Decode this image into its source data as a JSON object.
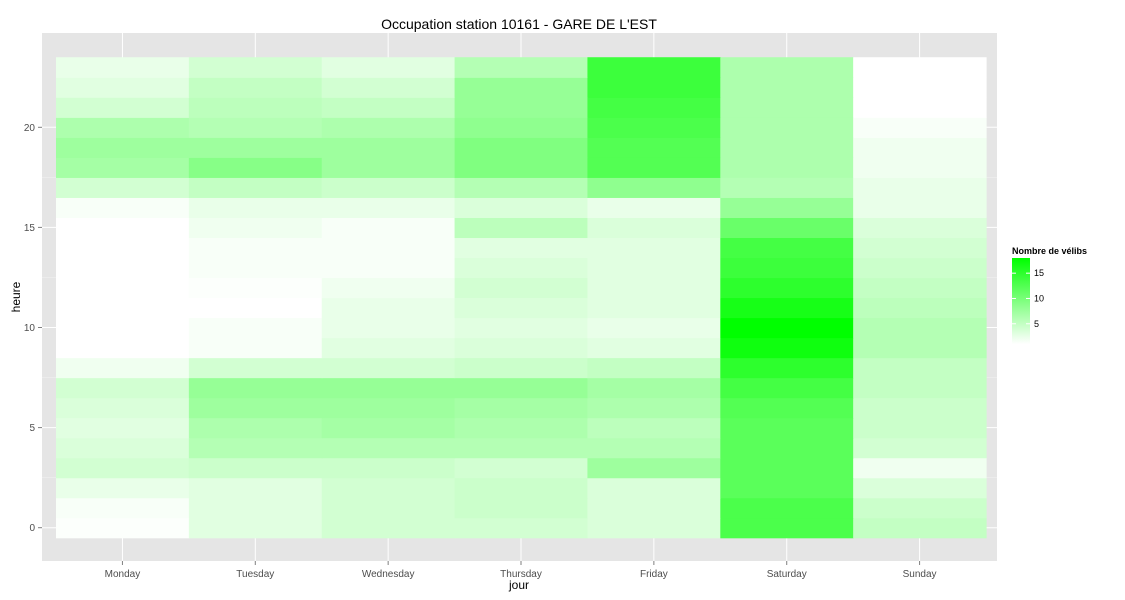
{
  "chart_data": {
    "type": "heatmap",
    "title": "Occupation station 10161 - GARE DE L'EST",
    "xlabel": "jour",
    "ylabel": "heure",
    "x_categories": [
      "Monday",
      "Tuesday",
      "Wednesday",
      "Thursday",
      "Friday",
      "Saturday",
      "Sunday"
    ],
    "y_hours": [
      0,
      1,
      2,
      3,
      4,
      5,
      6,
      7,
      8,
      9,
      10,
      11,
      12,
      13,
      14,
      15,
      16,
      17,
      18,
      19,
      20,
      21,
      22,
      23
    ],
    "y_ticks": [
      0,
      5,
      10,
      15,
      20
    ],
    "ylim": [
      -0.5,
      23.5
    ],
    "grid": true,
    "legend": {
      "title": "Nombre de vélibs",
      "ticks": [
        5,
        10,
        15
      ],
      "value_range": [
        1,
        18
      ],
      "color_low": "#ffffff",
      "color_high": "#00ff00",
      "placement": "right"
    },
    "values": [
      [
        1.2,
        3.0,
        4.0,
        4.0,
        3.5,
        13.0,
        5.0
      ],
      [
        1.5,
        3.0,
        4.0,
        4.5,
        3.5,
        13.0,
        4.5
      ],
      [
        2.5,
        3.0,
        4.0,
        4.5,
        3.5,
        12.0,
        3.5
      ],
      [
        4.0,
        4.5,
        4.5,
        4.0,
        7.5,
        12.0,
        2.0
      ],
      [
        3.5,
        6.0,
        6.0,
        6.0,
        6.0,
        12.0,
        4.0
      ],
      [
        3.0,
        6.5,
        7.0,
        6.5,
        5.5,
        12.0,
        4.5
      ],
      [
        3.5,
        7.5,
        7.5,
        7.0,
        6.5,
        12.5,
        4.5
      ],
      [
        4.0,
        8.0,
        8.0,
        8.0,
        7.0,
        13.5,
        5.0
      ],
      [
        2.0,
        4.0,
        4.0,
        4.5,
        5.0,
        15.0,
        5.0
      ],
      [
        0.5,
        1.5,
        3.0,
        3.5,
        3.0,
        17.0,
        6.0
      ],
      [
        0.2,
        1.5,
        2.5,
        3.0,
        2.5,
        18.0,
        6.0
      ],
      [
        1.0,
        1.0,
        2.5,
        3.5,
        3.0,
        16.5,
        5.5
      ],
      [
        1.0,
        1.2,
        2.0,
        4.0,
        3.0,
        15.0,
        5.0
      ],
      [
        1.0,
        1.5,
        1.5,
        3.5,
        3.0,
        14.0,
        4.5
      ],
      [
        0.8,
        1.5,
        1.5,
        3.0,
        3.0,
        13.5,
        4.0
      ],
      [
        0.8,
        2.0,
        1.5,
        5.5,
        3.5,
        11.0,
        3.5
      ],
      [
        1.5,
        2.5,
        2.5,
        3.5,
        2.5,
        8.0,
        2.5
      ],
      [
        4.0,
        5.0,
        4.5,
        6.0,
        8.5,
        6.0,
        2.5
      ],
      [
        7.0,
        9.0,
        7.5,
        9.5,
        12.5,
        6.5,
        2.0
      ],
      [
        7.5,
        7.5,
        7.5,
        9.5,
        12.5,
        6.5,
        2.0
      ],
      [
        6.5,
        6.0,
        6.5,
        8.5,
        13.0,
        6.5,
        1.5
      ],
      [
        4.0,
        5.5,
        5.0,
        8.0,
        13.5,
        6.5,
        1.0
      ],
      [
        3.0,
        5.0,
        4.0,
        8.0,
        14.0,
        6.5,
        1.0
      ],
      [
        2.5,
        4.0,
        3.0,
        6.0,
        14.0,
        6.5,
        1.0
      ]
    ]
  }
}
